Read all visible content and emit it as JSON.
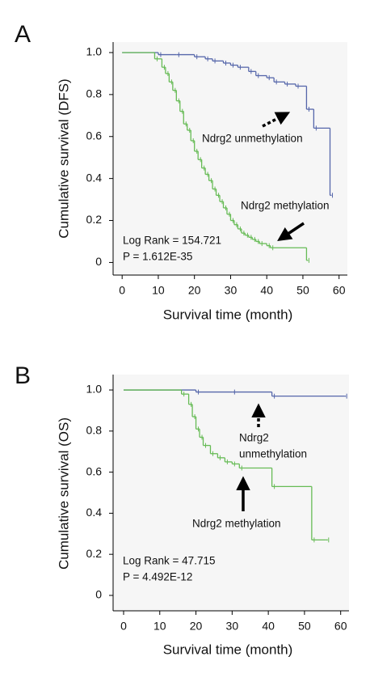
{
  "chart_data": [
    {
      "type": "step",
      "panel_label": "A",
      "x_label": "Survival time (month)",
      "y_label": "Cumulative survival (DFS)",
      "xlim": [
        -2.5,
        62.3
      ],
      "ylim": [
        -0.06,
        1.05
      ],
      "xticks": [
        0,
        10,
        20,
        30,
        40,
        50,
        60
      ],
      "yticks": [
        0,
        0.2,
        0.4,
        0.6,
        0.8,
        {
          "value": 1,
          "label": "1.0"
        }
      ],
      "annotations": [
        "Ndrg2 unmethylation",
        "Ndrg2 methylation",
        "Log Rank = 154.721",
        "P = 1.612E-35"
      ],
      "series": [
        {
          "color": "#5566aa",
          "x": [
            0,
            10,
            15,
            20,
            23,
            25,
            28,
            30,
            32,
            35,
            37,
            40,
            42,
            45,
            48,
            51,
            53,
            57.5
          ],
          "values": [
            1,
            0.99,
            0.99,
            0.98,
            0.97,
            0.96,
            0.95,
            0.94,
            0.93,
            0.91,
            0.89,
            0.88,
            0.86,
            0.85,
            0.84,
            0.73,
            0.64,
            0.32
          ]
        },
        {
          "color": "#66bb55",
          "x": [
            0,
            9,
            11,
            12,
            13,
            14,
            15,
            16,
            17,
            18,
            19,
            20,
            21,
            22,
            23,
            24,
            25,
            26,
            27,
            28,
            29,
            30,
            31,
            32,
            33,
            34,
            35,
            36,
            37,
            38,
            40,
            41,
            51
          ],
          "values": [
            1,
            0.97,
            0.93,
            0.9,
            0.86,
            0.82,
            0.77,
            0.72,
            0.66,
            0.63,
            0.58,
            0.53,
            0.49,
            0.45,
            0.42,
            0.39,
            0.35,
            0.32,
            0.29,
            0.26,
            0.23,
            0.2,
            0.18,
            0.16,
            0.14,
            0.13,
            0.12,
            0.11,
            0.1,
            0.09,
            0.08,
            0.07,
            0.01
          ]
        }
      ]
    },
    {
      "type": "step",
      "panel_label": "B",
      "x_label": "Survival time (month)",
      "y_label": "Cumulative survival (OS)",
      "xlim": [
        -2.9,
        62.3
      ],
      "ylim": [
        -0.075,
        1.075
      ],
      "xticks": [
        0,
        10,
        20,
        30,
        40,
        50,
        60
      ],
      "yticks": [
        0,
        0.2,
        0.4,
        0.6,
        0.8,
        {
          "value": 1,
          "label": "1.0"
        }
      ],
      "annotations": [
        "Ndrg2",
        "unmethylation",
        "Ndrg2 methylation",
        "Log Rank = 47.715",
        "P = 4.492E-12"
      ],
      "series": [
        {
          "color": "#5566aa",
          "x": [
            0,
            20,
            30,
            41,
            61
          ],
          "values": [
            1,
            0.99,
            0.99,
            0.97,
            0.97
          ]
        },
        {
          "color": "#66bb55",
          "x": [
            0,
            16,
            18,
            19,
            20,
            21,
            22,
            24,
            26,
            28,
            30,
            32,
            41,
            52,
            56
          ],
          "values": [
            1,
            0.98,
            0.93,
            0.87,
            0.81,
            0.77,
            0.73,
            0.69,
            0.67,
            0.65,
            0.64,
            0.62,
            0.53,
            0.27,
            0.27
          ]
        }
      ]
    }
  ]
}
